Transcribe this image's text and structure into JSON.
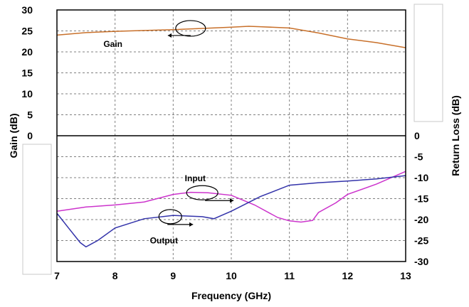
{
  "chart_data": {
    "type": "line",
    "xlabel": "Frequency (GHz)",
    "ylabel_left": "Gain (dB)",
    "ylabel_right": "Return Loss (dB)",
    "xlim": [
      7,
      13
    ],
    "ylim_left": [
      0,
      30
    ],
    "ylim_right": [
      -30,
      0
    ],
    "x_ticks": [
      "7",
      "8",
      "9",
      "10",
      "11",
      "12",
      "13"
    ],
    "y_ticks_left": [
      "0",
      "5",
      "10",
      "15",
      "20",
      "25",
      "30"
    ],
    "y_ticks_right": [
      "-30",
      "-25",
      "-20",
      "-15",
      "-10",
      "-5",
      "0"
    ],
    "grid": true,
    "series": [
      {
        "name": "Gain",
        "axis": "left",
        "color": "#c8702a",
        "x": [
          7.0,
          7.5,
          8.0,
          8.5,
          9.0,
          9.5,
          10.0,
          10.3,
          10.5,
          11.0,
          11.5,
          12.0,
          12.5,
          13.0
        ],
        "y": [
          24.0,
          24.6,
          24.9,
          25.1,
          25.3,
          25.6,
          25.9,
          26.1,
          26.0,
          25.7,
          24.5,
          23.1,
          22.2,
          21.0
        ]
      },
      {
        "name": "Input",
        "axis": "right",
        "color": "#cc33cc",
        "x": [
          7.0,
          7.5,
          8.0,
          8.5,
          9.0,
          9.3,
          9.6,
          10.0,
          10.4,
          10.8,
          11.0,
          11.2,
          11.4,
          11.5,
          11.8,
          12.0,
          12.5,
          13.0
        ],
        "y": [
          -18.0,
          -17.0,
          -16.5,
          -15.8,
          -14.0,
          -13.5,
          -13.6,
          -14.2,
          -16.5,
          -19.5,
          -20.3,
          -20.6,
          -20.2,
          -18.3,
          -16.0,
          -14.0,
          -11.5,
          -8.5
        ]
      },
      {
        "name": "Output",
        "axis": "right",
        "color": "#3333aa",
        "x": [
          7.0,
          7.2,
          7.4,
          7.5,
          7.7,
          8.0,
          8.5,
          9.0,
          9.5,
          9.7,
          10.0,
          10.5,
          11.0,
          11.5,
          12.0,
          12.5,
          13.0
        ],
        "y": [
          -18.5,
          -22.0,
          -25.5,
          -26.5,
          -25.0,
          -22.0,
          -19.8,
          -19.0,
          -19.3,
          -19.8,
          -18.0,
          -14.5,
          -11.8,
          -11.2,
          -10.8,
          -10.3,
          -9.5
        ]
      }
    ],
    "annotations": [
      {
        "text": "Gain",
        "x": 7.8,
        "y": 22.0,
        "axis": "left"
      },
      {
        "text": "Input",
        "x": 9.2,
        "y": -10.0,
        "axis": "right"
      },
      {
        "text": "Output",
        "x": 8.6,
        "y": -24.8,
        "axis": "right"
      }
    ]
  }
}
